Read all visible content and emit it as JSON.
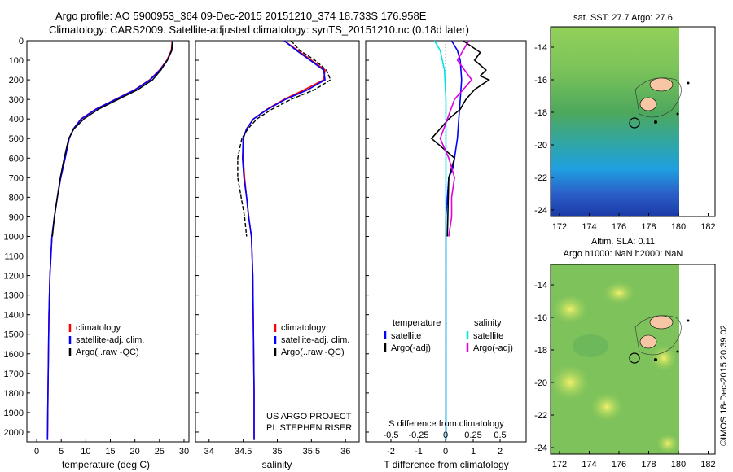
{
  "header": {
    "line1": "Argo profile: AO 5900953_364 09-Dec-2015 20151210_374 18.733S 176.958E",
    "line2": "Climatology: CARS2009. Satellite-adjusted climatology: synTS_20151210.nc (0.18d later)"
  },
  "colors": {
    "climatology": "#ff0000",
    "satellite": "#0000ff",
    "argo": "#000000",
    "salinity_sat": "#00e5e5",
    "salinity_argo": "#e000e0"
  },
  "depth_axis": {
    "ylim": [
      0,
      2050
    ],
    "ticks": [
      0,
      100,
      200,
      300,
      400,
      500,
      600,
      700,
      800,
      900,
      1000,
      1100,
      1200,
      1300,
      1400,
      1500,
      1600,
      1700,
      1800,
      1900,
      2000
    ]
  },
  "panels": {
    "temperature": {
      "xlabel": "temperature (deg C)",
      "xticks": [
        0,
        5,
        10,
        15,
        20,
        25,
        30
      ],
      "legend": [
        "climatology",
        "satellite-adj. clim.",
        "Argo(..raw -QC)"
      ]
    },
    "salinity": {
      "xlabel": "salinity",
      "xticks": [
        34,
        34.5,
        35,
        35.5,
        36
      ],
      "xtick_labels": [
        "34",
        "34.5",
        "35",
        "35.5",
        "36"
      ],
      "legend": [
        "climatology",
        "satellite-adj. clim.",
        "Argo(..raw -QC)"
      ],
      "credit1": "US ARGO PROJECT",
      "credit2": "PI: STEPHEN RISER"
    },
    "difference": {
      "xlabel": "T difference from climatology",
      "s_label": "S difference from climatology",
      "top_ticks": [
        "-0.5",
        "-0.25",
        "0",
        "0.25",
        "0.5"
      ],
      "bottom_ticks": [
        "-2",
        "-1",
        "0",
        "1",
        "2"
      ],
      "legend_t_title": "temperature",
      "legend_s_title": "salinity",
      "legend_t": [
        "satellite",
        "Argo(-adj)"
      ],
      "legend_s": [
        "satellite",
        "Argo(-adj)"
      ]
    }
  },
  "maps": {
    "sst_title": "sat. SST: 27.7  Argo: 27.6",
    "sla_title1": "Altim. SLA: 0.11",
    "sla_title2": "Argo h1000: NaN  h2000: NaN",
    "lat_ticks": [
      "-14",
      "-16",
      "-18",
      "-20",
      "-22",
      "-24"
    ],
    "lon_ticks": [
      "172",
      "174",
      "176",
      "178",
      "180",
      "182"
    ],
    "stamp": "©IMOS 18-Dec-2015 20:39:02"
  },
  "chart_data": [
    {
      "type": "line",
      "title": "",
      "xlabel": "temperature (deg C)",
      "ylabel": "",
      "xlim": [
        -2,
        31
      ],
      "ylim": [
        2050,
        0
      ],
      "series": [
        {
          "name": "climatology",
          "x": [
            27.6,
            27.4,
            26.5,
            25,
            23,
            20,
            16,
            12,
            9,
            7.5,
            6.6,
            5.8,
            4.9,
            4.2,
            3.6,
            3.1,
            2.7,
            2.5,
            2.4,
            2.3,
            2.2
          ],
          "y": [
            0,
            50,
            100,
            150,
            200,
            250,
            300,
            350,
            400,
            450,
            500,
            600,
            700,
            800,
            900,
            1000,
            1200,
            1400,
            1600,
            1800,
            2040
          ]
        },
        {
          "name": "satellite-adj. clim.",
          "x": [
            27.7,
            27.5,
            26.6,
            25.1,
            23.1,
            20.1,
            16.1,
            12.1,
            9.1,
            7.5,
            6.6,
            5.8,
            4.9,
            4.2,
            3.6,
            3.1,
            2.7,
            2.5,
            2.4,
            2.3,
            2.2
          ],
          "y": [
            0,
            50,
            100,
            150,
            200,
            250,
            300,
            350,
            400,
            450,
            500,
            600,
            700,
            800,
            900,
            1000,
            1200,
            1400,
            1600,
            1800,
            2040
          ]
        },
        {
          "name": "Argo(..raw -QC)",
          "x": [
            27.6,
            27.5,
            26.6,
            25.3,
            23.6,
            20.6,
            16.6,
            12.6,
            9.6,
            7.6,
            6.5,
            5.6,
            4.8,
            4.2,
            3.6,
            3.2
          ],
          "y": [
            5,
            50,
            100,
            150,
            200,
            250,
            300,
            350,
            400,
            450,
            500,
            600,
            700,
            800,
            900,
            1000
          ]
        }
      ]
    },
    {
      "type": "line",
      "title": "",
      "xlabel": "salinity",
      "ylabel": "",
      "xlim": [
        33.8,
        36.2
      ],
      "ylim": [
        2050,
        0
      ],
      "series": [
        {
          "name": "climatology",
          "x": [
            35.1,
            35.3,
            35.5,
            35.7,
            35.68,
            35.4,
            35.1,
            34.85,
            34.65,
            34.55,
            34.5,
            34.5,
            34.52,
            34.55,
            34.58,
            34.62,
            34.64,
            34.65,
            34.66,
            34.66
          ],
          "y": [
            0,
            50,
            100,
            150,
            200,
            250,
            300,
            350,
            400,
            450,
            500,
            600,
            700,
            800,
            900,
            1000,
            1200,
            1500,
            1800,
            2040
          ]
        },
        {
          "name": "satellite-adj. clim.",
          "x": [
            35.1,
            35.28,
            35.48,
            35.68,
            35.7,
            35.45,
            35.12,
            34.86,
            34.65,
            34.55,
            34.5,
            34.49,
            34.51,
            34.55,
            34.58,
            34.62,
            34.64,
            34.65,
            34.66,
            34.66
          ],
          "y": [
            0,
            50,
            100,
            150,
            200,
            250,
            300,
            350,
            400,
            450,
            500,
            600,
            700,
            800,
            900,
            1000,
            1200,
            1500,
            1800,
            2040
          ]
        },
        {
          "name": "Argo(..raw -QC)",
          "x": [
            35.2,
            35.33,
            35.55,
            35.72,
            35.78,
            35.55,
            35.2,
            34.92,
            34.7,
            34.57,
            34.48,
            34.42,
            34.42,
            34.47,
            34.52,
            34.55
          ],
          "y": [
            0,
            50,
            100,
            150,
            200,
            250,
            300,
            350,
            400,
            450,
            500,
            600,
            700,
            800,
            900,
            1000
          ]
        }
      ]
    },
    {
      "type": "line",
      "title": "",
      "xlabel": "T difference from climatology",
      "ylabel": "",
      "xlim": [
        -2.8,
        2.8
      ],
      "ylim": [
        2050,
        0
      ],
      "series": [
        {
          "name": "temperature satellite",
          "x": [
            0.2,
            0.4,
            0.5,
            0.55,
            0.5,
            0.45,
            0.4,
            0.35,
            0.3,
            0.25,
            0.1,
            0.05,
            0,
            0,
            0
          ],
          "y": [
            0,
            50,
            100,
            200,
            300,
            400,
            500,
            550,
            600,
            650,
            700,
            800,
            900,
            1000,
            2040
          ]
        },
        {
          "name": "temperature Argo(-adj)",
          "x": [
            0.6,
            1.2,
            1.0,
            1.4,
            1.2,
            1.5,
            1.0,
            0.7,
            0.5,
            0.1,
            -0.5,
            0.3,
            0.1,
            0.05
          ],
          "y": [
            0,
            60,
            100,
            150,
            180,
            200,
            250,
            300,
            350,
            400,
            500,
            600,
            700,
            1000
          ]
        },
        {
          "name": "salinity satellite",
          "x": [
            -0.4,
            -0.2,
            -0.05,
            0,
            0,
            0,
            0,
            0
          ],
          "y": [
            0,
            50,
            150,
            300,
            500,
            1000,
            1500,
            2040
          ]
        },
        {
          "name": "salinity Argo(-adj)",
          "x": [
            0.8,
            0.4,
            0.9,
            0.3,
            -0.2,
            0.1,
            0.3,
            0.2,
            0.2,
            0.1
          ],
          "y": [
            0,
            100,
            200,
            300,
            500,
            600,
            700,
            800,
            900,
            1000
          ]
        }
      ]
    }
  ]
}
